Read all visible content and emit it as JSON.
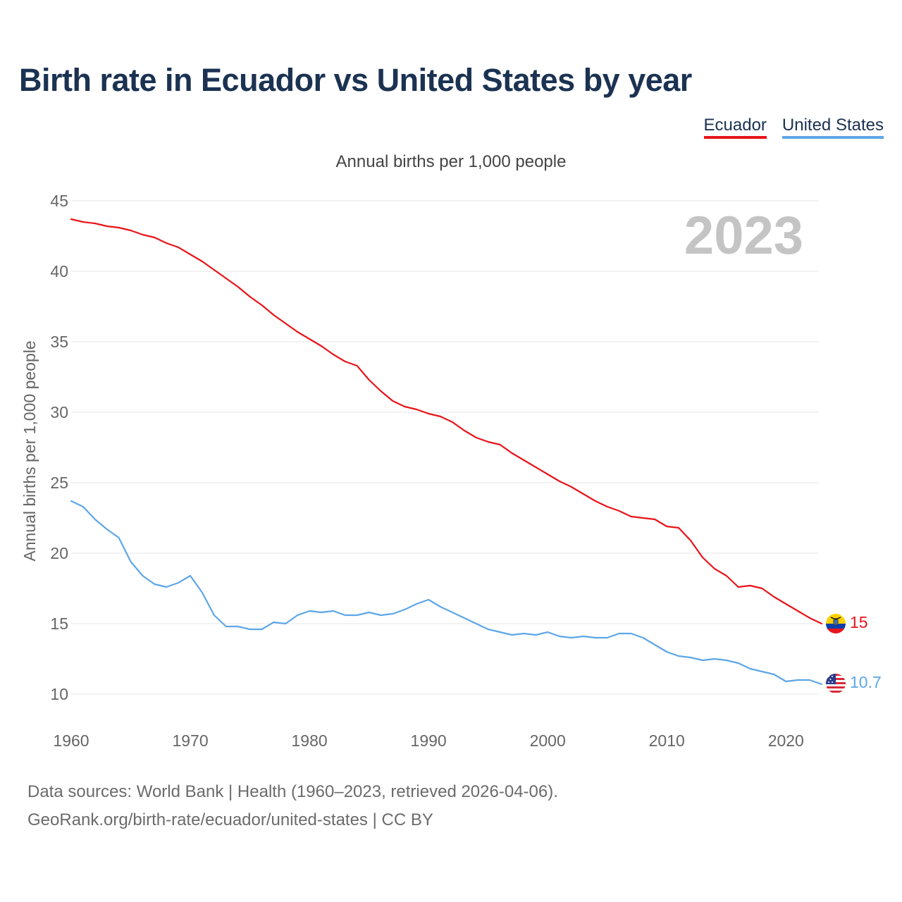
{
  "title": "Birth rate in Ecuador vs United States by year",
  "subtitle": "Annual births per 1,000 people",
  "legend": [
    {
      "label": "Ecuador",
      "color": "#e8141a"
    },
    {
      "label": "United States",
      "color": "#5ea6e8"
    }
  ],
  "year_watermark": "2023",
  "footer": {
    "line1": "Data sources: World Bank | Health (1960–2023, retrieved 2026-04-06).",
    "line2": "GeoRank.org/birth-rate/ecuador/united-states | CC BY"
  },
  "chart_data": {
    "type": "line",
    "title": "Birth rate in Ecuador vs United States by year",
    "ylabel": "Annual births per 1,000 people",
    "xlabel": "",
    "x_start": 1960,
    "xlim": [
      1960,
      2023
    ],
    "ylim": [
      10,
      45
    ],
    "x_ticks": [
      1960,
      1970,
      1980,
      1990,
      2000,
      2010,
      2020
    ],
    "y_ticks": [
      10,
      15,
      20,
      25,
      30,
      35,
      40,
      45
    ],
    "grid": true,
    "series": [
      {
        "name": "Ecuador",
        "color": "#e8141a",
        "end_label": "15",
        "flag": "ecuador-flag",
        "values": [
          43.7,
          43.5,
          43.4,
          43.2,
          43.1,
          42.9,
          42.6,
          42.4,
          42.0,
          41.7,
          41.2,
          40.7,
          40.1,
          39.5,
          38.9,
          38.2,
          37.6,
          36.9,
          36.3,
          35.7,
          35.2,
          34.7,
          34.1,
          33.6,
          33.3,
          32.3,
          31.5,
          30.8,
          30.4,
          30.2,
          29.9,
          29.7,
          29.3,
          28.7,
          28.2,
          27.9,
          27.7,
          27.1,
          26.6,
          26.1,
          25.6,
          25.1,
          24.7,
          24.2,
          23.7,
          23.3,
          23.0,
          22.6,
          22.5,
          22.4,
          21.9,
          21.8,
          20.9,
          19.7,
          18.9,
          18.4,
          17.6,
          17.7,
          17.5,
          16.9,
          16.4,
          15.9,
          15.4,
          15.0
        ]
      },
      {
        "name": "United States",
        "color": "#5ea6e8",
        "end_label": "10.7",
        "flag": "united-states-flag",
        "values": [
          23.7,
          23.3,
          22.4,
          21.7,
          21.1,
          19.4,
          18.4,
          17.8,
          17.6,
          17.9,
          18.4,
          17.2,
          15.6,
          14.8,
          14.8,
          14.6,
          14.6,
          15.1,
          15.0,
          15.6,
          15.9,
          15.8,
          15.9,
          15.6,
          15.6,
          15.8,
          15.6,
          15.7,
          16.0,
          16.4,
          16.7,
          16.2,
          15.8,
          15.4,
          15.0,
          14.6,
          14.4,
          14.2,
          14.3,
          14.2,
          14.4,
          14.1,
          14.0,
          14.1,
          14.0,
          14.0,
          14.3,
          14.3,
          14.0,
          13.5,
          13.0,
          12.7,
          12.6,
          12.4,
          12.5,
          12.4,
          12.2,
          11.8,
          11.6,
          11.4,
          10.9,
          11.0,
          11.0,
          10.7
        ]
      }
    ]
  }
}
